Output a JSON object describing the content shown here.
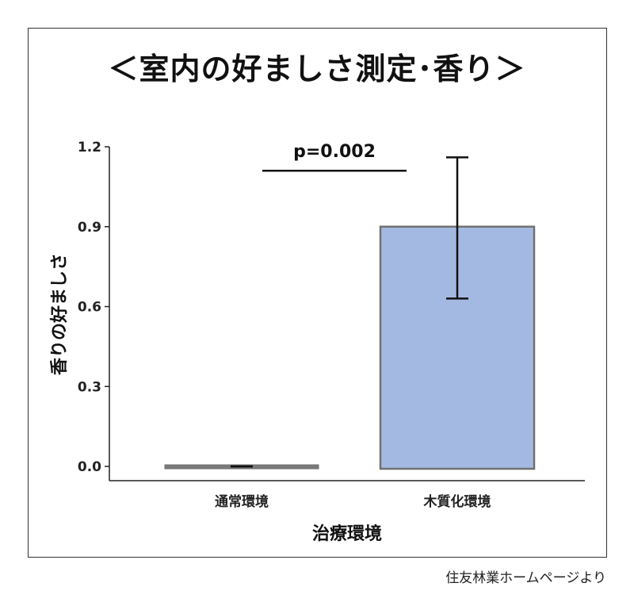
{
  "chart_data": {
    "type": "bar",
    "title": "＜室内の好ましさ測定･香り＞",
    "categories": [
      "通常環境",
      "木質化環境"
    ],
    "values": [
      0.0,
      0.9
    ],
    "error_bars": [
      {
        "low": 0.0,
        "high": 0.0
      },
      {
        "low": 0.63,
        "high": 1.16
      }
    ],
    "bar_colors": [
      "#7a7a7a",
      "#a4b9e2"
    ],
    "bar_edge_color": "#707070",
    "xlabel": "治療環境",
    "ylabel": "香りの好ましさ",
    "ylim": [
      0,
      1.2
    ],
    "yticks": [
      "0.0",
      "0.3",
      "0.6",
      "0.9",
      "1.2"
    ],
    "ytick_values": [
      0.0,
      0.3,
      0.6,
      0.9,
      1.2
    ],
    "annotation": {
      "text": "p=0.002",
      "y": 1.11
    },
    "grid": false,
    "legend": "none"
  },
  "source": "住友林業ホームページより"
}
